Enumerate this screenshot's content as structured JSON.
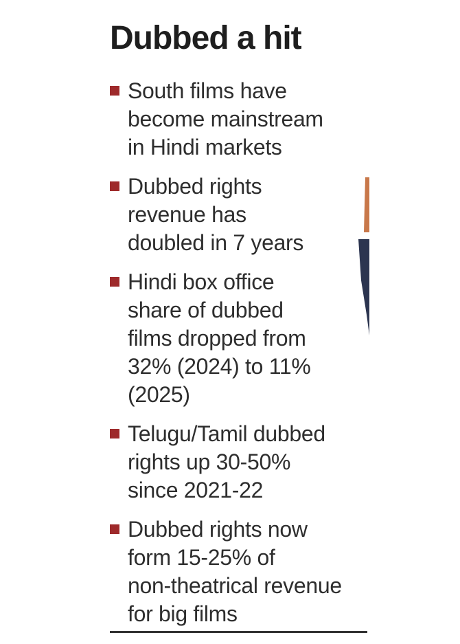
{
  "title": "Dubbed a hit",
  "colors": {
    "bullet_marker": "#9e2a2b",
    "text": "#2e2e2e",
    "rule": "#333333"
  },
  "bullets": [
    {
      "text": "South films have\nbecome mainstream\nin Hindi markets"
    },
    {
      "text": "Dubbed rights\nrevenue has\ndoubled in 7 years"
    },
    {
      "text": "Hindi box office\nshare of dubbed\nfilms dropped from\n32% (2024) to 11%\n(2025)"
    },
    {
      "text": "Telugu/Tamil dubbed\nrights up 30-50%\nsince 2021-22"
    },
    {
      "text": "Dubbed rights now\nform 15-25% of\nnon-theatrical revenue\nfor big films"
    }
  ]
}
